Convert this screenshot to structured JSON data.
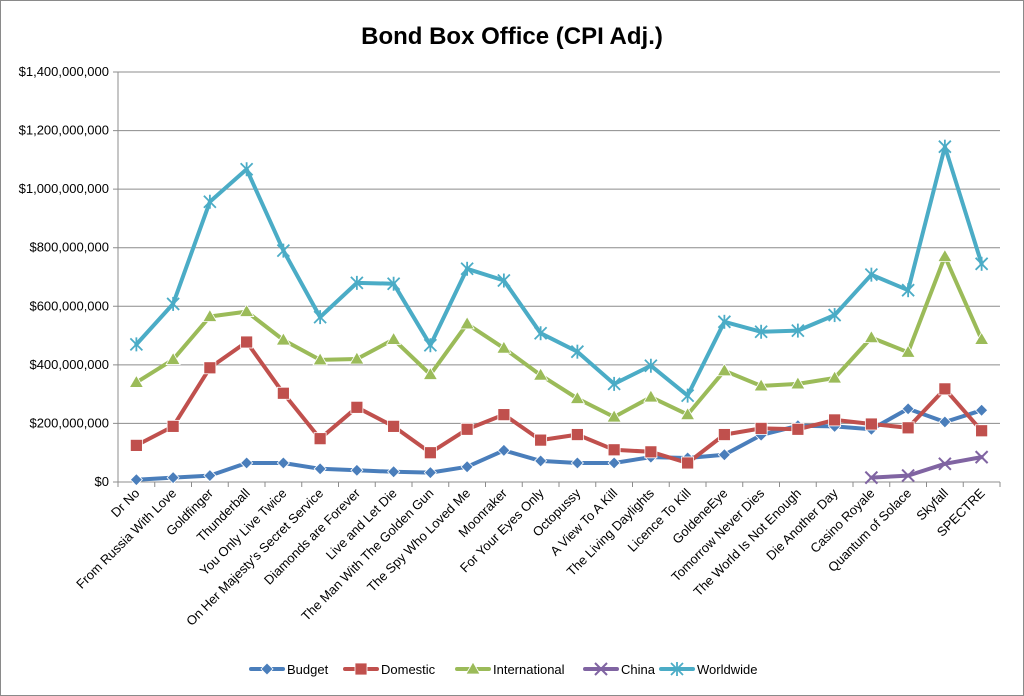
{
  "chart_data": {
    "type": "line",
    "title": "Bond Box Office (CPI Adj.)",
    "xlabel": "",
    "ylabel": "",
    "ylim": [
      0,
      1400000000
    ],
    "yticks": [
      0,
      200000000,
      400000000,
      600000000,
      800000000,
      1000000000,
      1200000000,
      1400000000
    ],
    "ytick_labels": [
      "$0",
      "$200,000,000",
      "$400,000,000",
      "$600,000,000",
      "$800,000,000",
      "$1,000,000,000",
      "$1,200,000,000",
      "$1,400,000,000"
    ],
    "grid": true,
    "legend_position": "bottom",
    "categories": [
      "Dr No",
      "From Russia With Love",
      "Goldfinger",
      "Thunderball",
      "You Only Live Twice",
      "On Her Majesty's Secret Service",
      "Diamonds are Forever",
      "Live and Let Die",
      "The Man With The Golden Gun",
      "The Spy Who Loved Me",
      "Moonraker",
      "For Your Eyes Only",
      "Octopussy",
      "A View To A Kill",
      "The Living Daylights",
      "Licence To Kill",
      "GoldeneEye",
      "Tomorrow Never Dies",
      "The World Is Not Enough",
      "Die Another Day",
      "Casino Royale",
      "Quantum of Solace",
      "Skyfall",
      "SPECTRE"
    ],
    "series": [
      {
        "name": "Budget",
        "color": "#4a7ebb",
        "marker": "diamond",
        "values": [
          8000000,
          15000000,
          22000000,
          65000000,
          65000000,
          45000000,
          40000000,
          35000000,
          32000000,
          52000000,
          108000000,
          72000000,
          65000000,
          65000000,
          85000000,
          82000000,
          93000000,
          160000000,
          192000000,
          190000000,
          180000000,
          250000000,
          205000000,
          245000000
        ]
      },
      {
        "name": "Domestic",
        "color": "#c0504d",
        "marker": "square",
        "values": [
          125000000,
          190000000,
          390000000,
          478000000,
          303000000,
          148000000,
          255000000,
          190000000,
          100000000,
          180000000,
          230000000,
          143000000,
          162000000,
          110000000,
          103000000,
          65000000,
          162000000,
          183000000,
          180000000,
          212000000,
          198000000,
          185000000,
          318000000,
          175000000
        ]
      },
      {
        "name": "International",
        "color": "#9bbb59",
        "marker": "triangle",
        "values": [
          340000000,
          418000000,
          565000000,
          582000000,
          485000000,
          417000000,
          420000000,
          487000000,
          367000000,
          540000000,
          457000000,
          365000000,
          285000000,
          222000000,
          290000000,
          230000000,
          380000000,
          328000000,
          335000000,
          355000000,
          493000000,
          443000000,
          770000000,
          487000000
        ]
      },
      {
        "name": "China",
        "color": "#8064a2",
        "marker": "x",
        "values": [
          null,
          null,
          null,
          null,
          null,
          null,
          null,
          null,
          null,
          null,
          null,
          null,
          null,
          null,
          null,
          null,
          null,
          null,
          null,
          null,
          15000000,
          22000000,
          62000000,
          85000000
        ]
      },
      {
        "name": "Worldwide",
        "color": "#4bacc6",
        "marker": "star",
        "values": [
          470000000,
          608000000,
          957000000,
          1068000000,
          790000000,
          563000000,
          680000000,
          677000000,
          467000000,
          728000000,
          688000000,
          508000000,
          445000000,
          335000000,
          397000000,
          295000000,
          547000000,
          513000000,
          517000000,
          570000000,
          708000000,
          655000000,
          1145000000,
          745000000
        ]
      }
    ]
  }
}
